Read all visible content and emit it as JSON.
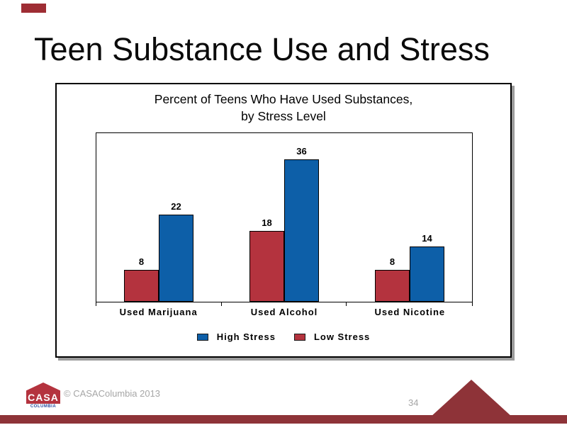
{
  "slide": {
    "title": "Teen Substance Use and Stress",
    "page_number": "34",
    "copyright": "© CASAColumbia 2013",
    "logo": {
      "text": "CASA",
      "subtext": "COLUMBIA"
    },
    "colors": {
      "accent_maroon": "#8E3338",
      "top_accent": "#9E2D34",
      "muted_text_gray": "#A6A6A6"
    }
  },
  "chart_data": {
    "type": "bar",
    "title_line1": "Percent of Teens Who Have Used Substances,",
    "title_line2": "by Stress Level",
    "categories": [
      "Used Marijuana",
      "Used Alcohol",
      "Used Nicotine"
    ],
    "series": [
      {
        "name": "Low Stress",
        "color": "#B4333E",
        "values": [
          8,
          18,
          8
        ]
      },
      {
        "name": "High Stress",
        "color": "#0D5FA8",
        "values": [
          22,
          36,
          14
        ]
      }
    ],
    "legend": [
      "High Stress",
      "Low Stress"
    ],
    "legend_position": "bottom",
    "ylim": [
      0,
      40
    ],
    "y_axis_labels_visible": false,
    "grid": false,
    "data_labels": true
  }
}
